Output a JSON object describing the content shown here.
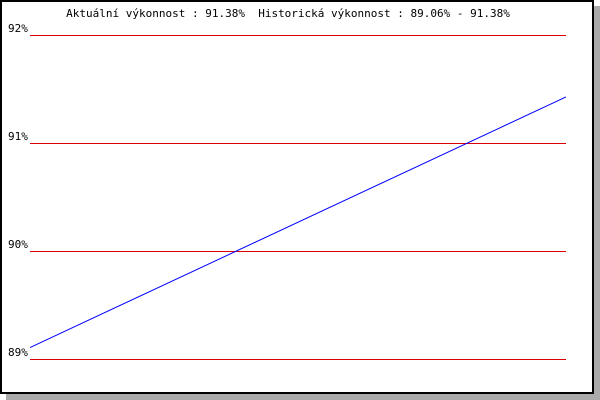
{
  "chart_data": {
    "type": "line",
    "title": "Aktuální výkonnost : 91.38%  Historická výkonnost : 89.06% - 91.38%",
    "xlabel": "",
    "ylabel": "",
    "ylim": [
      89,
      92
    ],
    "yticks": [
      89,
      90,
      91,
      92
    ],
    "ytick_labels": [
      "89%",
      "90%",
      "91%",
      "92%"
    ],
    "grid": true,
    "series": [
      {
        "values": [
          89.06,
          91.38
        ]
      }
    ],
    "colors": {
      "line": "#0000ff",
      "grid": "#dd0000",
      "frame": "#000000",
      "shadow": "#aaaaaa"
    }
  }
}
